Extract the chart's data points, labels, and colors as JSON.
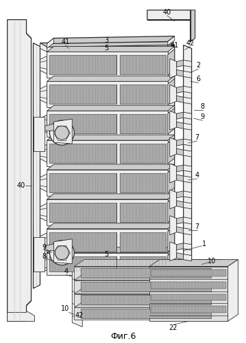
{
  "caption": "Фиг.6",
  "background_color": "#ffffff",
  "lc": "#2a2a2a",
  "fill_white": "#ffffff",
  "fill_light": "#eeeeee",
  "fill_gray": "#cccccc",
  "fill_mid": "#aaaaaa",
  "fill_dark": "#888888",
  "caption_fontsize": 9,
  "label_fontsize": 7,
  "fig_width": 3.59,
  "fig_height": 4.99,
  "dpi": 100
}
